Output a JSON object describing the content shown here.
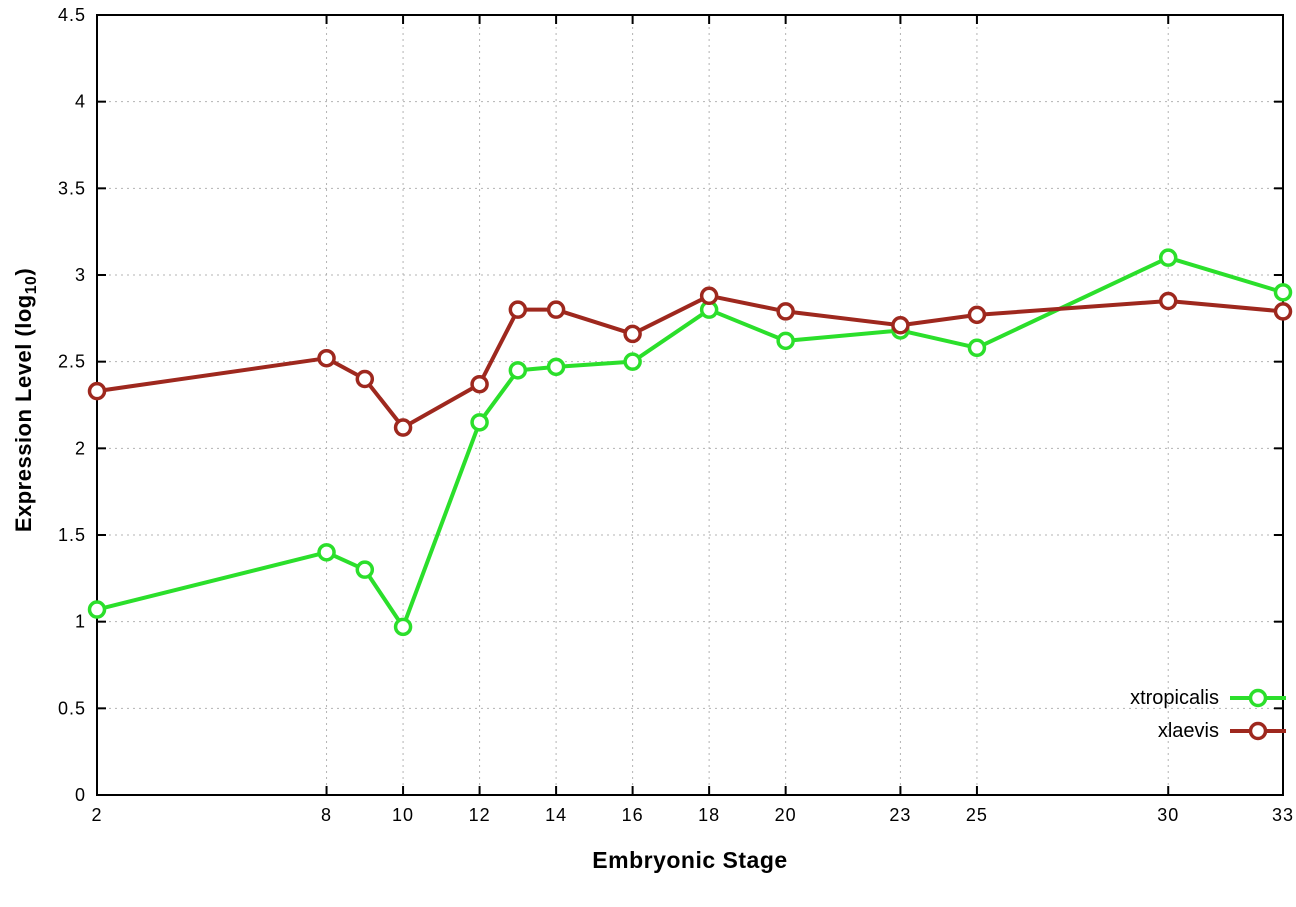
{
  "chart_data": {
    "type": "line",
    "title": "",
    "xlabel": "Embryonic Stage",
    "ylabel": {
      "prefix": "Expression Level (log",
      "sub": "10",
      "suffix": ")"
    },
    "xlim": [
      2,
      33
    ],
    "ylim": [
      0,
      4.5
    ],
    "grid": true,
    "legend_position": "bottom-right",
    "xticks": [
      2,
      8,
      10,
      12,
      14,
      16,
      18,
      20,
      23,
      25,
      30,
      33
    ],
    "xtick_labels": [
      "2",
      "8",
      "10",
      "12",
      "14",
      "16",
      "18",
      "20",
      "23",
      "25",
      "30",
      "33"
    ],
    "yticks": [
      0,
      0.5,
      1,
      1.5,
      2,
      2.5,
      3,
      3.5,
      4,
      4.5
    ],
    "ytick_labels": [
      "0",
      "0.5",
      "1",
      "1.5",
      "2",
      "2.5",
      "3",
      "3.5",
      "4",
      "4.5"
    ],
    "x": [
      2,
      8,
      9,
      10,
      12,
      13,
      14,
      16,
      18,
      20,
      23,
      25,
      30,
      33
    ],
    "series": [
      {
        "name": "xtropicalis",
        "color": "#2bdf2b",
        "values": [
          1.07,
          1.4,
          1.3,
          0.97,
          2.15,
          2.45,
          2.47,
          2.5,
          2.8,
          2.62,
          2.68,
          2.58,
          3.1,
          2.9
        ]
      },
      {
        "name": "xlaevis",
        "color": "#9e281e",
        "values": [
          2.33,
          2.52,
          2.4,
          2.12,
          2.37,
          2.8,
          2.8,
          2.66,
          2.88,
          2.79,
          2.71,
          2.77,
          2.85,
          2.79
        ]
      }
    ],
    "axis_color": "#000000",
    "grid_color": "#b3b3b3",
    "background": "#ffffff"
  }
}
